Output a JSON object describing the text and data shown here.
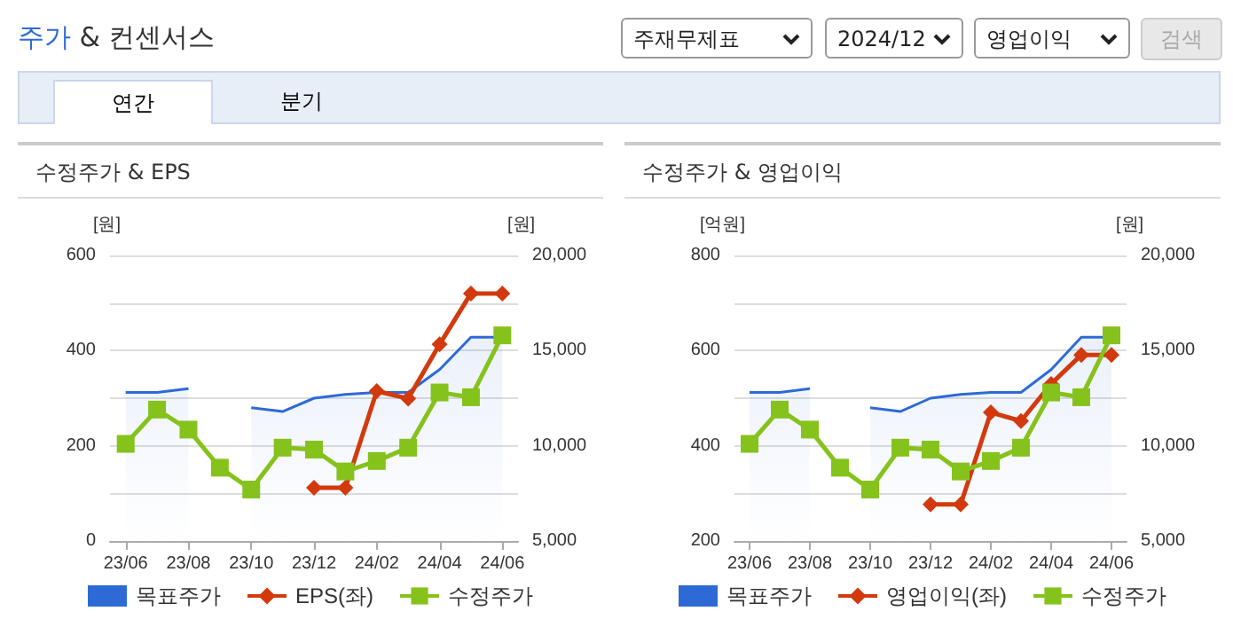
{
  "chart_data": [
    {
      "type": "other",
      "title": "주가 & 컨센서스",
      "annotations": [
        "주재무제표",
        "2024/12",
        "영업이익",
        "검색",
        "연간",
        "분기"
      ]
    },
    {
      "type": "line",
      "title": "수정주가 & EPS",
      "ylabel": "[원]",
      "y2label": "[원]",
      "categories": [
        "23/06",
        null,
        "23/08",
        null,
        "23/10",
        null,
        "23/12",
        null,
        "24/02",
        null,
        "24/04",
        null,
        "24/06"
      ],
      "ylim": [
        0,
        600
      ],
      "yticks": [
        0,
        200,
        400,
        600
      ],
      "y2lim": [
        5000,
        20000
      ],
      "y2ticks": [
        {
          "value": 5000,
          "label": "5,000"
        },
        {
          "value": 10000,
          "label": "10,000"
        },
        {
          "value": 15000,
          "label": "15,000"
        },
        {
          "value": 20000,
          "label": "20,000"
        }
      ],
      "grid": "y",
      "legend": "bottom",
      "series": [
        {
          "name": "목표주가",
          "type": "area",
          "color": "#2e6ad6",
          "axis": "y2",
          "marker": "none",
          "values": [
            12800,
            12800,
            13000,
            null,
            12000,
            11800,
            12500,
            12700,
            12800,
            12800,
            14000,
            15700,
            15700
          ]
        },
        {
          "name": "EPS(좌)",
          "type": "line",
          "color": "#d23a0e",
          "marker": "diamond",
          "values": [
            null,
            null,
            null,
            null,
            null,
            null,
            112,
            112,
            315,
            299,
            413,
            520,
            520
          ]
        },
        {
          "name": "수정주가",
          "type": "line",
          "color": "#86c21c",
          "axis": "y2",
          "marker": "square",
          "values": [
            10100,
            11900,
            10850,
            8850,
            7700,
            9900,
            9800,
            8650,
            9200,
            9900,
            12800,
            12550,
            15800
          ]
        }
      ]
    },
    {
      "type": "line",
      "title": "수정주가 & 영업이익",
      "ylabel": "[억원]",
      "y2label": "[원]",
      "categories": [
        "23/06",
        null,
        "23/08",
        null,
        "23/10",
        null,
        "23/12",
        null,
        "24/02",
        null,
        "24/04",
        null,
        "24/06"
      ],
      "ylim": [
        200,
        800
      ],
      "yticks": [
        200,
        400,
        600,
        800
      ],
      "y2lim": [
        5000,
        20000
      ],
      "y2ticks": [
        {
          "value": 5000,
          "label": "5,000"
        },
        {
          "value": 10000,
          "label": "10,000"
        },
        {
          "value": 15000,
          "label": "15,000"
        },
        {
          "value": 20000,
          "label": "20,000"
        }
      ],
      "grid": "y",
      "legend": "bottom",
      "series": [
        {
          "name": "목표주가",
          "type": "area",
          "color": "#2e6ad6",
          "axis": "y2",
          "marker": "none",
          "values": [
            12800,
            12800,
            13000,
            null,
            12000,
            11800,
            12500,
            12700,
            12800,
            12800,
            14000,
            15700,
            15700
          ]
        },
        {
          "name": "영업이익(좌)",
          "type": "line",
          "color": "#d23a0e",
          "marker": "diamond",
          "values": [
            null,
            null,
            null,
            null,
            null,
            null,
            277,
            277,
            470,
            452,
            530,
            591,
            591
          ]
        },
        {
          "name": "수정주가",
          "type": "line",
          "color": "#86c21c",
          "axis": "y2",
          "marker": "square",
          "values": [
            10100,
            11900,
            10850,
            8850,
            7700,
            9900,
            9800,
            8650,
            9200,
            9900,
            12800,
            12550,
            15800
          ]
        }
      ]
    }
  ]
}
